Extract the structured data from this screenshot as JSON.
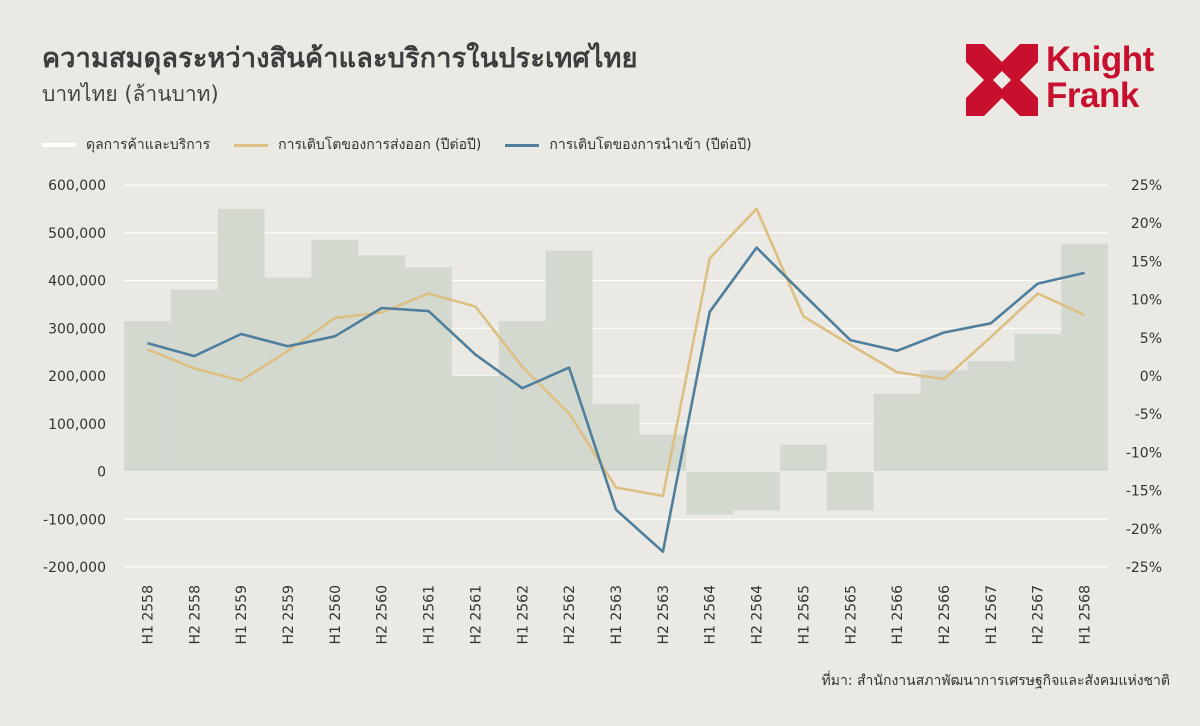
{
  "header": {
    "title": "ความสมดุลระหว่างสินค้าและบริการในประเทศไทย",
    "subtitle": "บาทไทย (ล้านบาท)"
  },
  "logo": {
    "line1": "Knight",
    "line2": "Frank",
    "color": "#c8102e"
  },
  "source": "ที่มา: สำนักงานสภาพัฒนาการเศรษฐกิจและสังคมแห่งชาติ",
  "colors": {
    "background": "#ebe9e3",
    "bars": "#d4d9d0",
    "exports_line": "#dcbf82",
    "imports_line": "#4f7f9c",
    "gridline": "#ffffff",
    "balance_legend": "#ffffff"
  },
  "chart_data": {
    "type": "bar+line",
    "categories": [
      "H1 2558",
      "H2 2558",
      "H1 2559",
      "H2 2559",
      "H1 2560",
      "H2 2560",
      "H1 2561",
      "H2 2561",
      "H1 2562",
      "H2 2562",
      "H1 2563",
      "H2 2563",
      "H1 2564",
      "H2 2564",
      "H1 2565",
      "H2 2565",
      "H1 2566",
      "H2 2566",
      "H1 2567",
      "H2 2567",
      "H1 2568"
    ],
    "left_axis": {
      "ylim": [
        -200000,
        600000
      ],
      "ticks": [
        600000,
        500000,
        400000,
        300000,
        200000,
        100000,
        0,
        -100000,
        -200000
      ],
      "tick_labels": [
        "600,000",
        "500,000",
        "400,000",
        "300,000",
        "200,000",
        "100,000",
        "0",
        "-100,000",
        "-200,000"
      ]
    },
    "right_axis": {
      "ylim": [
        -25,
        25
      ],
      "ticks": [
        25,
        20,
        15,
        10,
        5,
        0,
        -5,
        -10,
        -15,
        -20,
        -25
      ],
      "tick_labels": [
        "25%",
        "20%",
        "15%",
        "10%",
        "5%",
        "0%",
        "-5%",
        "-10%",
        "-15%",
        "-20%",
        "-25%"
      ]
    },
    "series": [
      {
        "name": "ดุลการค้าและบริการ",
        "type": "bar",
        "axis": "left",
        "values": [
          315000,
          381000,
          550000,
          406000,
          485000,
          453000,
          428000,
          200000,
          315000,
          462000,
          142000,
          77000,
          -90000,
          -82000,
          56000,
          -82000,
          163000,
          212000,
          231000,
          288000,
          477000
        ]
      },
      {
        "name": "การเติบโตของการส่งออก (ปีต่อปี)",
        "type": "line",
        "axis": "right",
        "values": [
          3.5,
          1.0,
          -0.6,
          3.3,
          7.6,
          8.3,
          10.8,
          9.1,
          1.2,
          -4.9,
          -14.6,
          -15.7,
          15.4,
          21.9,
          7.8,
          4.1,
          0.5,
          -0.4,
          5.1,
          10.8,
          8.0
        ]
      },
      {
        "name": "การเติบโตของการนำเข้า (ปีต่อปี)",
        "type": "line",
        "axis": "right",
        "values": [
          4.3,
          2.6,
          5.5,
          3.9,
          5.2,
          8.9,
          8.5,
          2.8,
          -1.6,
          1.1,
          -17.5,
          -23.0,
          8.4,
          16.8,
          10.7,
          4.7,
          3.3,
          5.7,
          6.9,
          12.1,
          13.5
        ]
      }
    ],
    "grid": true,
    "legend_position": "top-left"
  }
}
